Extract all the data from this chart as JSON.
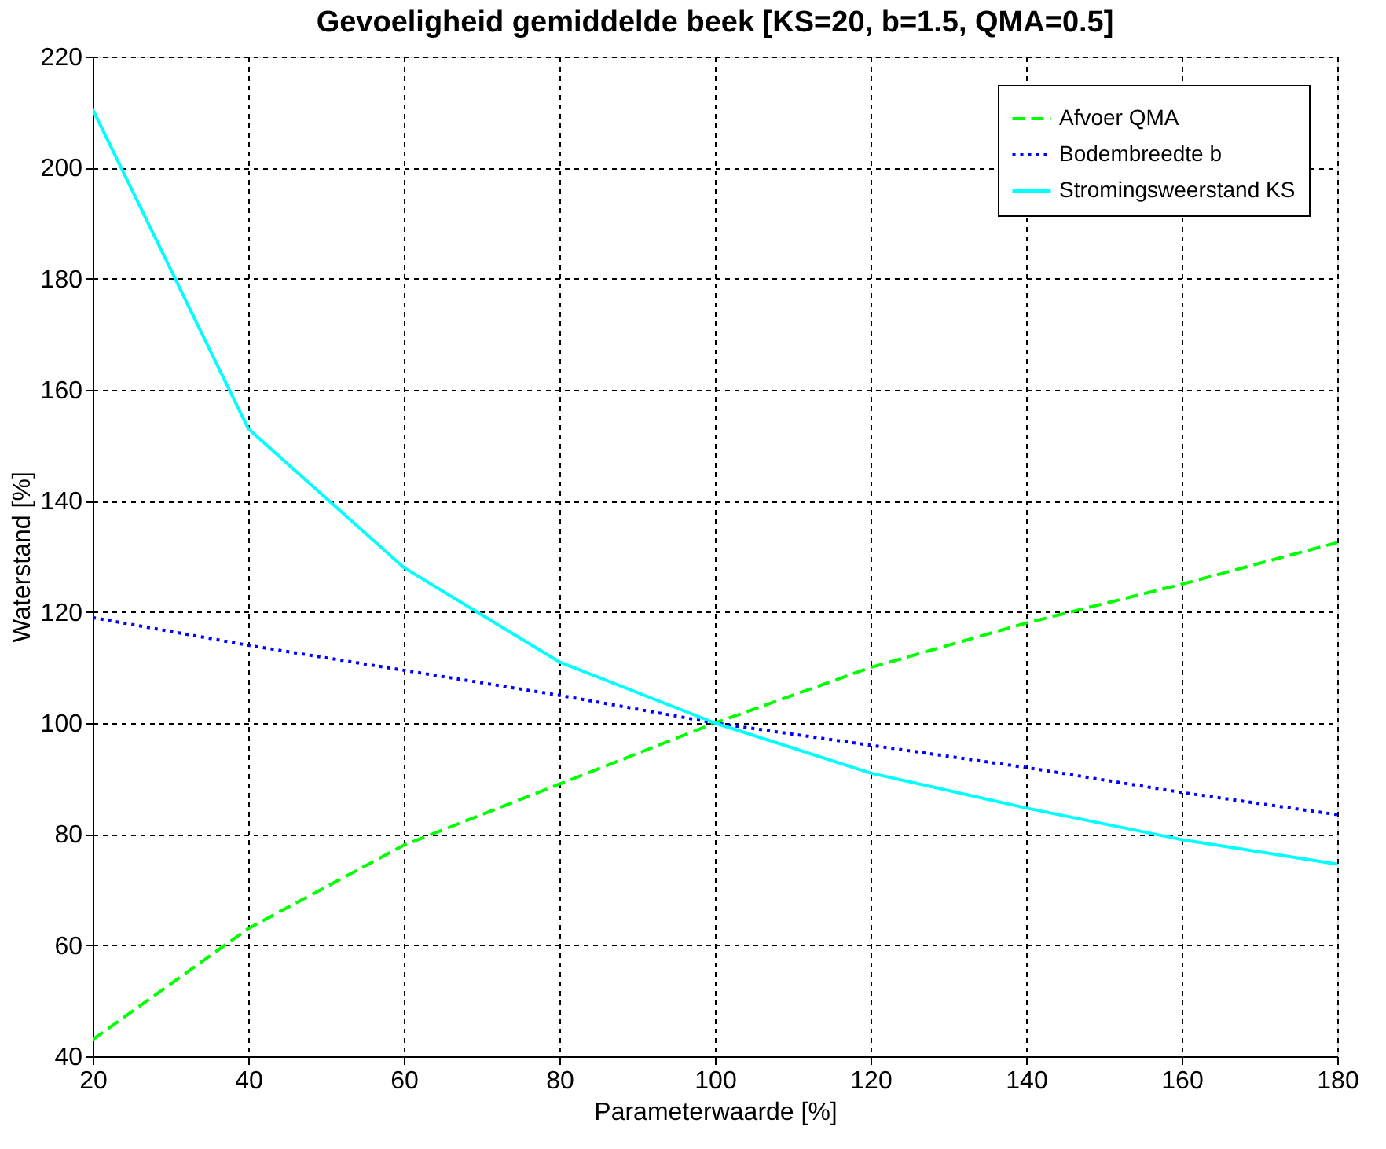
{
  "chart_data": {
    "type": "line",
    "title": "Gevoeligheid gemiddelde beek [KS=20, b=1.5, QMA=0.5]",
    "xlabel": "Parameterwaarde [%]",
    "ylabel": "Waterstand [%]",
    "x": [
      20,
      40,
      60,
      80,
      100,
      120,
      140,
      160,
      180
    ],
    "series": [
      {
        "name": "Afvoer QMA",
        "color": "#00ff00",
        "line_style": "dashed",
        "values": [
          43,
          63,
          78,
          89,
          100,
          110,
          118,
          125,
          132.5
        ]
      },
      {
        "name": "Bodembreedte b",
        "color": "#0000ff",
        "line_style": "dotted",
        "values": [
          119,
          114,
          109.5,
          105,
          100,
          96,
          92,
          87.5,
          83.5
        ]
      },
      {
        "name": "Stromingsweerstand KS",
        "color": "#00ffff",
        "line_style": "solid",
        "values": [
          210.5,
          153,
          128,
          111,
          100,
          91,
          84.7,
          79,
          74.6
        ]
      }
    ],
    "xlim": [
      20,
      180
    ],
    "xticks": [
      20,
      40,
      60,
      80,
      100,
      120,
      140,
      160,
      180
    ],
    "ylim": [
      40,
      220
    ],
    "yticks": [
      40,
      60,
      80,
      100,
      120,
      140,
      160,
      180,
      200,
      220
    ],
    "grid": true,
    "legend": "top right",
    "marker": "none"
  }
}
